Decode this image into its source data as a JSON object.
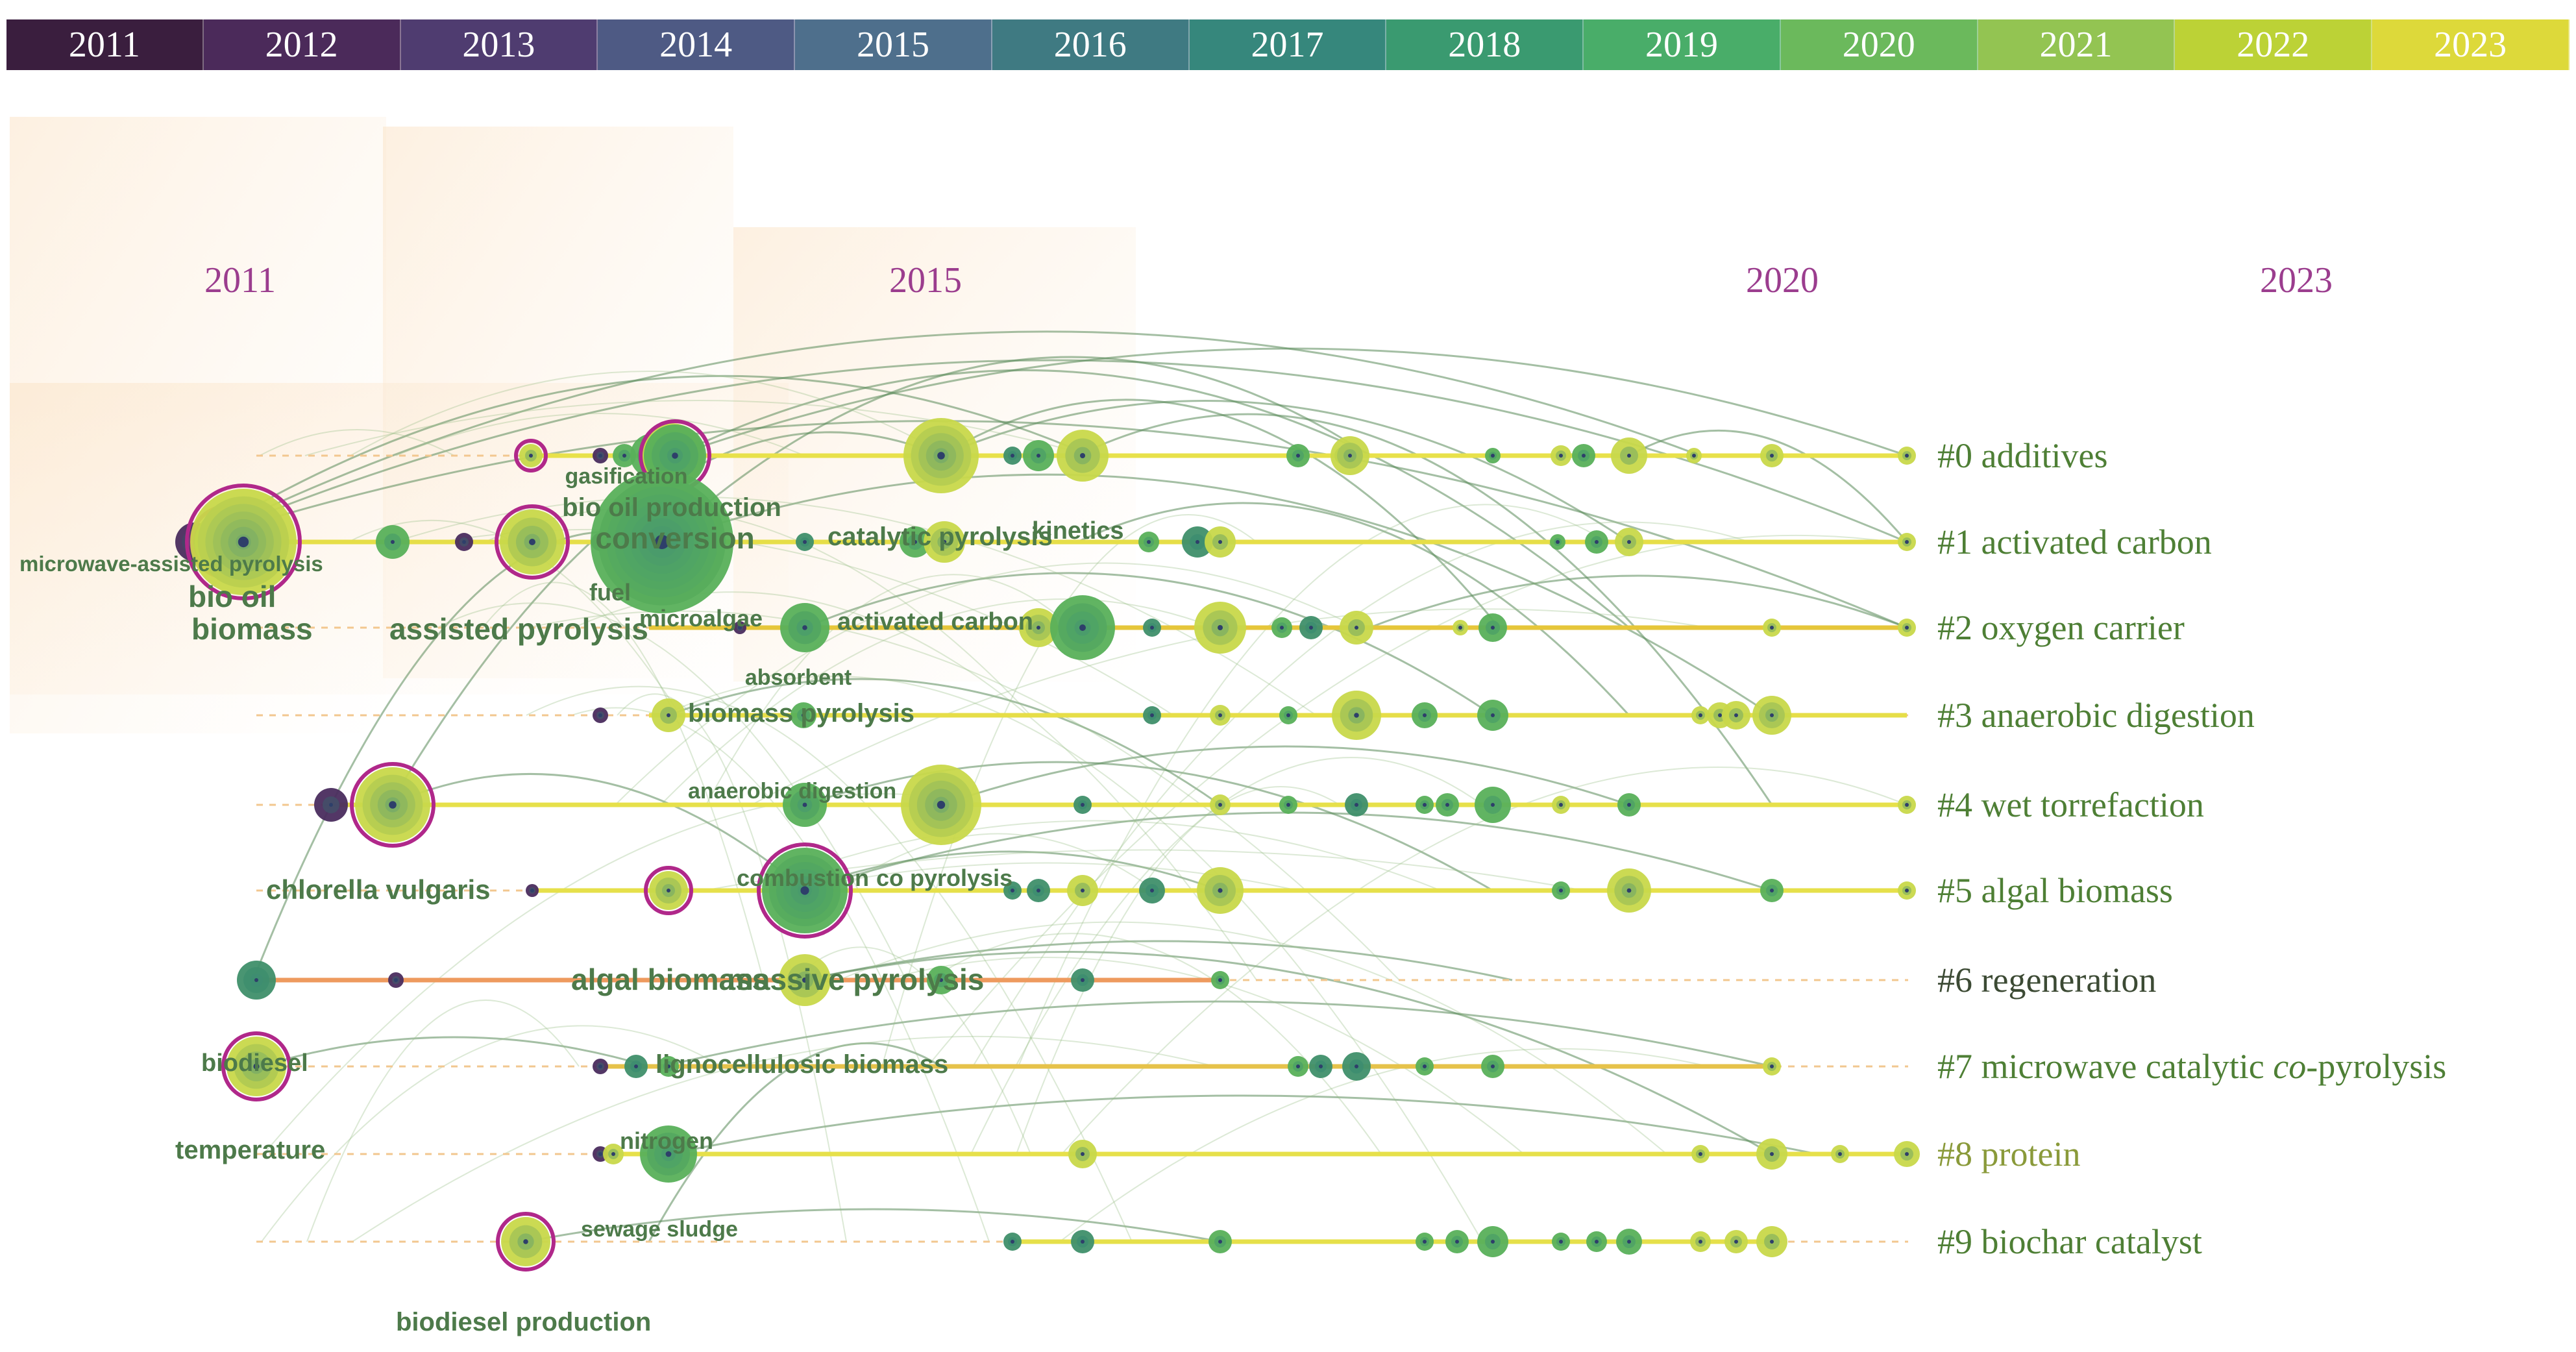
{
  "legend": {
    "years": [
      "2011",
      "2012",
      "2013",
      "2014",
      "2015",
      "2016",
      "2017",
      "2018",
      "2019",
      "2020",
      "2021",
      "2022",
      "2023"
    ],
    "colors": [
      "#3a1e3e",
      "#4b2a5a",
      "#4f3c70",
      "#4e5a84",
      "#4e6f8c",
      "#3f7a82",
      "#36877c",
      "#3a9a70",
      "#49ad69",
      "#6bb95c",
      "#93c452",
      "#bcd236",
      "#ddd93a"
    ]
  },
  "axis": {
    "year_marks": [
      {
        "label": "2011",
        "year": 2011
      },
      {
        "label": "2015",
        "year": 2015
      },
      {
        "label": "2020",
        "year": 2020
      },
      {
        "label": "2023",
        "year": 2023
      }
    ]
  },
  "clusters": [
    {
      "label": "#0 additives",
      "color": "#4e7f35"
    },
    {
      "label": "#1 activated carbon",
      "color": "#4e7f35"
    },
    {
      "label": "#2 oxygen carrier",
      "color": "#4e7f35"
    },
    {
      "label": "#3 anaerobic digestion",
      "color": "#4e7f35"
    },
    {
      "label": "#4 wet torrefaction",
      "color": "#4e7f35"
    },
    {
      "label": "#5 algal biomass",
      "color": "#4e7f35"
    },
    {
      "label": "#6 regeneration",
      "color": "#3c4a34"
    },
    {
      "label_parts": [
        "#7 microwave catalytic ",
        "co",
        "-pyrolysis"
      ],
      "color": "#4e7f35"
    },
    {
      "label": "#8 protein",
      "color": "#8a9a3a"
    },
    {
      "label": "#9 biochar catalyst",
      "color": "#4e7f35"
    }
  ],
  "keywords": [
    {
      "text": "gasification"
    },
    {
      "text": "bio oil production"
    },
    {
      "text": "conversion"
    },
    {
      "text": "microwave-assisted pyrolysis"
    },
    {
      "text": "catalytic pyrolysis"
    },
    {
      "text": "kinetics"
    },
    {
      "text": "bio oil"
    },
    {
      "text": "fuel"
    },
    {
      "text": "biomass"
    },
    {
      "text": "assisted pyrolysis"
    },
    {
      "text": "microalgae"
    },
    {
      "text": "activated carbon"
    },
    {
      "text": "absorbent"
    },
    {
      "text": "biomass pyrolysis"
    },
    {
      "text": "anaerobic digestion"
    },
    {
      "text": "chlorella vulgaris"
    },
    {
      "text": "combustion"
    },
    {
      "text": "co pyrolysis"
    },
    {
      "text": "algal biomass"
    },
    {
      "text": "massive pyrolysis"
    },
    {
      "text": "biodiesel"
    },
    {
      "text": "lignocellulosic biomass"
    },
    {
      "text": "temperature"
    },
    {
      "text": "nitrogen"
    },
    {
      "text": "sewage sludge"
    },
    {
      "text": "biodiesel production"
    }
  ]
}
